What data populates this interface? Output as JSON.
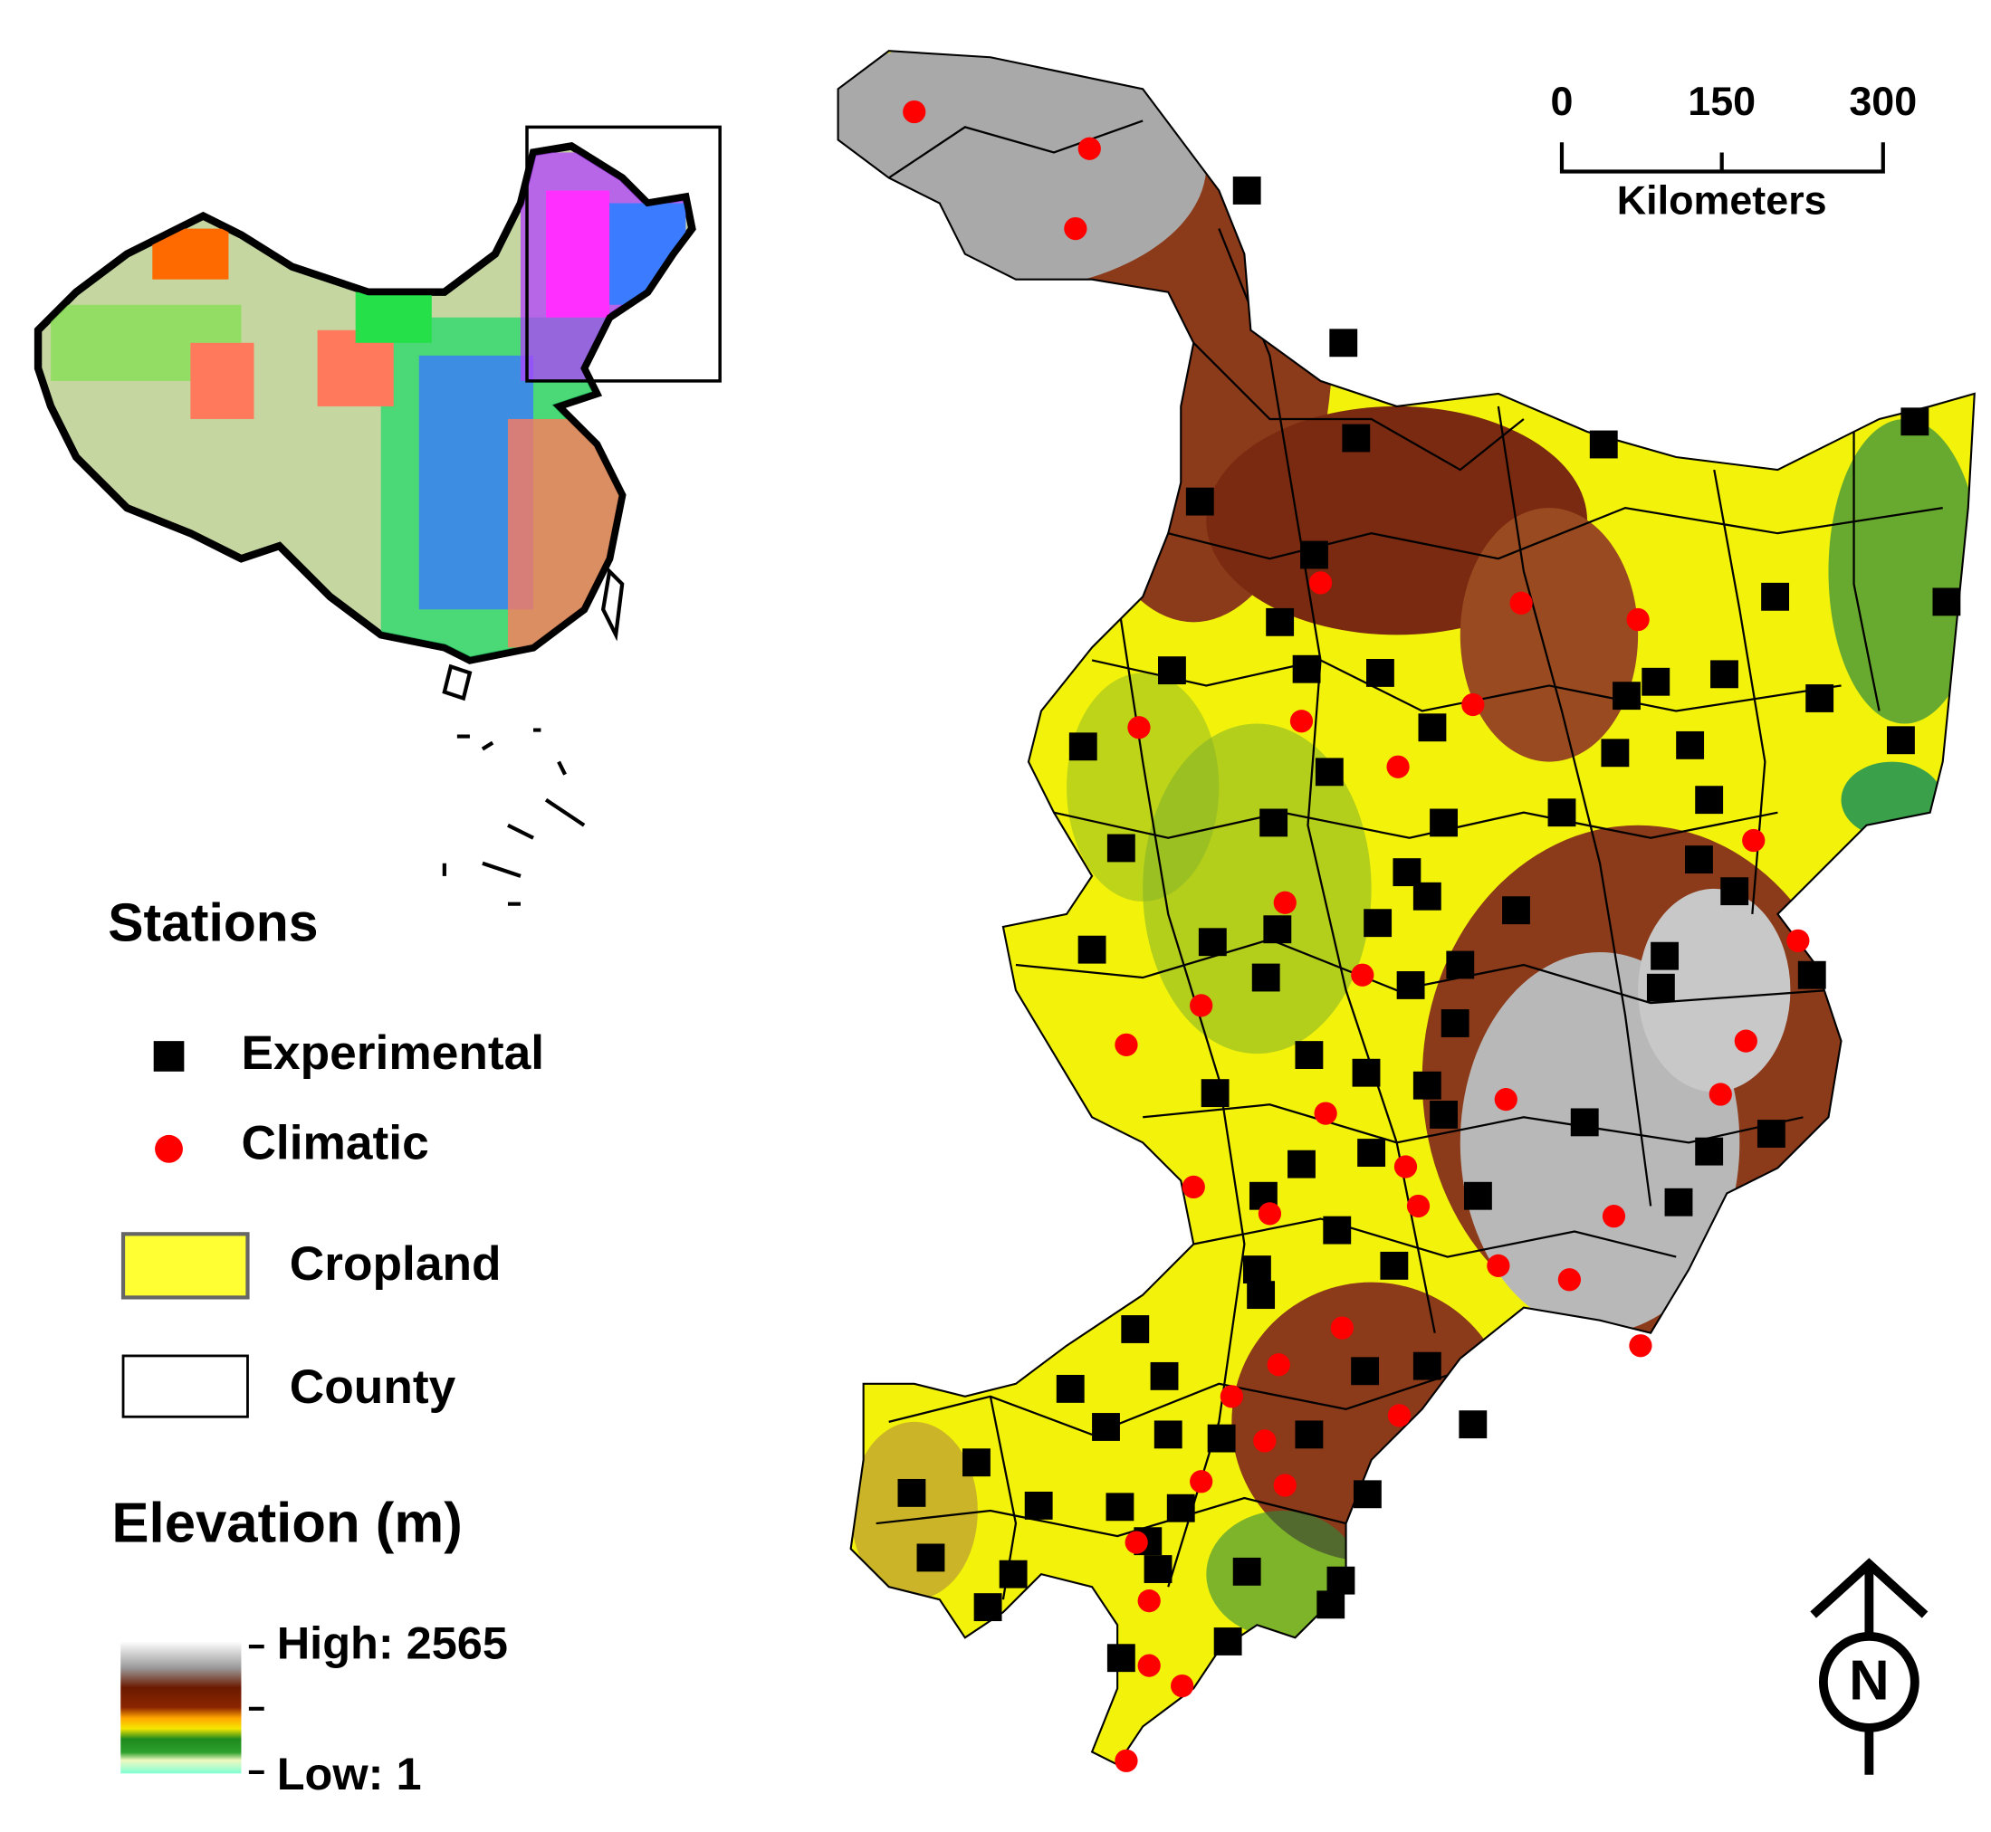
{
  "legend": {
    "stations_title": "Stations",
    "items": [
      {
        "label": "Experimental"
      },
      {
        "label": "Climatic"
      },
      {
        "label": "Cropland"
      },
      {
        "label": "County"
      }
    ],
    "elevation_title": "Elevation (m)",
    "elevation_high": "High: 2565",
    "elevation_low": "Low: 1"
  },
  "scale_bar": {
    "ticks": [
      "0",
      "150",
      "300"
    ],
    "unit": "Kilometers"
  },
  "north_arrow": "N"
}
